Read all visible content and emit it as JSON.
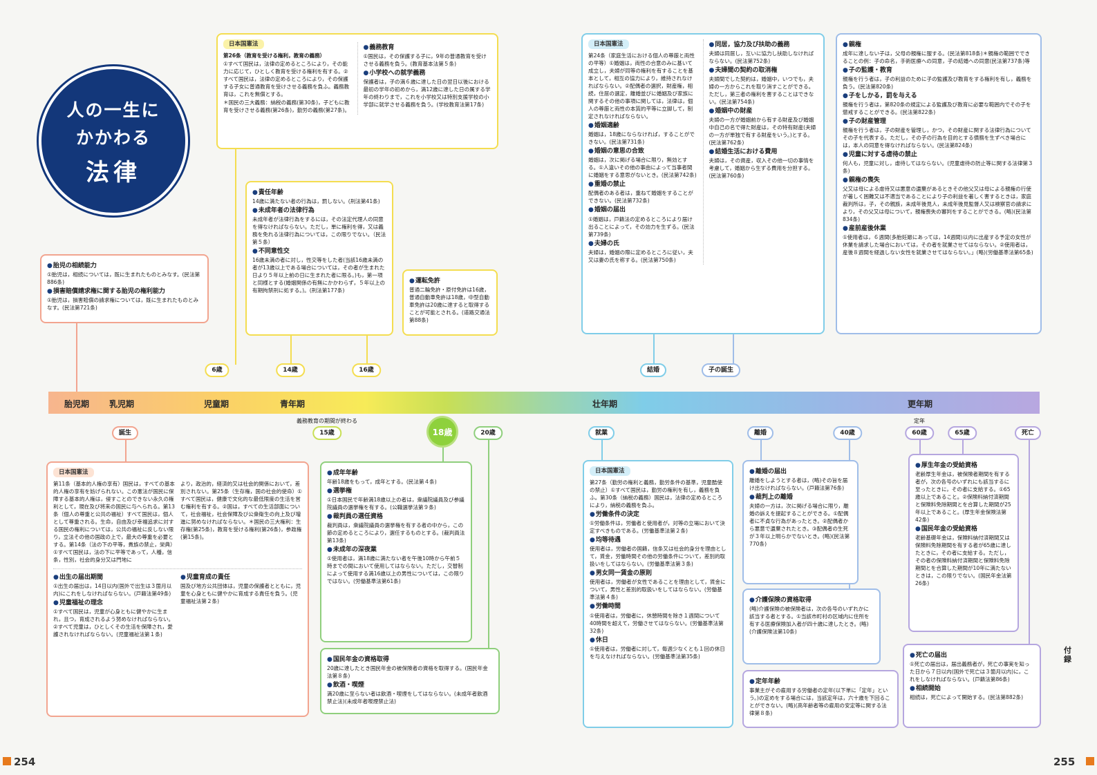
{
  "title": {
    "line1": "人の一生に",
    "line2": "かかわる",
    "line3": "法律"
  },
  "page_left": "254",
  "page_right": "255",
  "appendix": "付録",
  "stages": [
    "胎児期",
    "乳児期",
    "児童期",
    "青年期",
    "壮年期",
    "更年期"
  ],
  "ages_top": [
    "6歳",
    "14歳",
    "16歳",
    "結婚",
    "子の誕生"
  ],
  "ages_bottom": [
    "誕生",
    "15歳",
    "18歳",
    "20歳",
    "就業",
    "離婚",
    "40歳",
    "60歳",
    "65歳",
    "死亡"
  ],
  "notes": {
    "compulsory_end": "義務教育の期間が終わる",
    "retire": "定年"
  },
  "b_edu": {
    "tag": "日本国憲法",
    "c1": [
      "第26条（教育を受ける権利，教育の義務）",
      "①すべて国民は，法律の定めるところにより，その能力に応じて，ひとしく教育を受ける権利を有する。②すべて国民は，法律の定めるところにより，その保護する子女に普通教育を受けさせる義務を負ふ。義務教育は，これを無償とする。",
      "＊国民の三大義務：納税の義務(第30条)，子どもに教育を受けさせる義務(第26条)，勤労の義務(第27条)。"
    ],
    "h1": "義務教育",
    "p1": "①国民は，その保護する子に，9年の普通教育を受けさせる義務を負う。(教育基本法第５条)",
    "h2": "小学校への就学義務",
    "p2": "保護者は，子の満６歳に達した日の翌日以後における最初の学年の初めから，満12歳に達した日の属する学年の終わりまで，これを小学校又は特別支援学校の小学部に就学させる義務を負う。(学校教育法第17条)"
  },
  "b_resp": {
    "h1": "責任年齢",
    "p1": "14歳に満たない者の行為は，罰しない。(刑法第41条)",
    "h2": "未成年者の法律行為",
    "p2": "未成年者が法律行為をするには，その法定代理人の同意を得なければならない。ただし，単に権利を得，又は義務を免れる法律行為については，この限りでない。（民法第５条）",
    "h3": "不同意性交",
    "p3": "16歳未満の者に対し，性交等をした者(当該16歳未満の者が13歳以上である場合については，その者が生まれた日より５年以上前の日に生まれた者に限る。)も，第一項と同様とする(婚姻関係の有無にかかわらず，５年以上の有期拘禁刑に処する。)。(刑法第177条)"
  },
  "b_drive": {
    "h1": "運転免許",
    "p1": "普通二輪免許・原付免許は16歳，普通自動車免許は18歳，中型自動車免許は20歳に達すると取得することが可能とされる。(道路交通法第88条)"
  },
  "b_fetus": {
    "h1": "胎児の相続能力",
    "p1": "①胎児は，相続については，既に生まれたものとみなす。(民法第886条)",
    "h2": "損害賠償請求権に関する胎児の権利能力",
    "p2": "①胎児は，損害賠償の請求権については，既に生まれたものとみなす。(民法第721条)"
  },
  "b_marr": {
    "tag": "日本国憲法",
    "c1": "第24条（家庭生活における個人の尊厳と両性の平等）①婚姻は，両性の合意のみに基いて成立し，夫婦が同等の権利を有することを基本として，相互の協力により，維持されなければならない。②配偶者の選択，財産権，相続，住居の選定，離婚並びに婚姻及び家族に関するその他の事項に関しては，法律は，個人の尊厳と両性の本質的平等に立脚して，制定されなければならない。",
    "h1": "婚姻適齢",
    "p1": "婚姻は，18歳にならなければ，することができない。(民法第731条)",
    "h2": "婚姻の意思の合致",
    "p2": "婚姻は，次に掲げる場合に限り，無効とする。①人違いその他の事由によって当事者間に婚姻をする意思がないとき。(民法第742条)",
    "h3": "重婚の禁止",
    "p3": "配偶者のある者は，重ねて婚姻をすることができない。(民法第732条)",
    "h4": "婚姻の届出",
    "p4": "①婚姻は，戸籍法の定めるところにより届け出ることによって，その効力を生ずる。(民法第739条)",
    "h5": "夫婦の氏",
    "p5": "夫婦は，婚姻の際に定めるところに従い，夫又は妻の氏を称する。(民法第750条)",
    "h6": "同居，協力及び扶助の義務",
    "p6": "夫婦は同居し，互いに協力し扶助しなければならない。(民法第752条)",
    "h7": "夫婦間の契約の取消権",
    "p7": "夫婦間でした契約は，婚姻中，いつでも，夫婦の一方からこれを取り消すことができる。ただし，第三者の権利を害することはできない。(民法第754条)",
    "h8": "婚姻中の財産",
    "p8": "夫婦の一方が婚姻前から有する財産及び婚姻中自己の名で得た財産は，その特有財産(夫婦の一方が単独で有する財産をいう。)とする。(民法第762条)",
    "h9": "結婚生活における費用",
    "p9": "夫婦は，その資産，収入その他一切の事情を考慮して，婚姻から生ずる費用を分担する。(民法第760条)"
  },
  "b_parent": {
    "h1": "親権",
    "p1": "成年に達しない子は，父母の親権に服する。(民法第818条)＊親権の範囲でできることの例：子の命名，手術医療への同意，子の結婚への同意(民法第737条)等",
    "h2": "子の監護・教育",
    "p2": "親権を行う者は，子の利益のために子の監護及び教育をする権利を有し，義務を負う。(民法第820条)",
    "h3": "子をしかる，罰を与える",
    "p3": "親権を行う者は，第820条の規定による監護及び教育に必要な範囲内でその子を懲戒することができる。(民法第822条)",
    "h4": "子の財産管理",
    "p4": "親権を行う者は，子の財産を管理し，かつ，その財産に関する法律行為についてその子を代表する。ただし，その子の行為を目的とする債務を生ずべき場合には，本人の同意を得なければならない。(民法第824条)",
    "h5": "児童に対する虐待の禁止",
    "p5": "何人も，児童に対し，虐待してはならない。(児童虐待の防止等に関する法律第３条)",
    "h6": "親権の喪失",
    "p6": "父又は母による虐待又は悪意の遺棄があるときその他父又は母による親権の行使が著しく困難又は不適当であることにより子の利益を著しく害するときは，家庭裁判所は，子，その親族，未成年後見人，未成年後見監督人又は検察官の請求により，その父又は母について，親権喪失の審判をすることができる。(略)(民法第834条)",
    "h7": "産前産後休業",
    "p7": "①使用者は，６週間(多胎妊娠にあっては，14週間)以内に出産する予定の女性が休業を請求した場合においては，その者を就業させてはならない。②使用者は，産後８週間を経過しない女性を就業させてはならない。」(略)(労働基準法第65条)"
  },
  "b_birth": {
    "tag": "日本国憲法",
    "c1": "第11条（基本的人権の享有）国民は，すべての基本的人権の享有を妨げられない。この憲法が国民に保障する基本的人権は，侵すことのできない永久の権利として，現在及び将来の国民に与へられる。第13条（個人の尊重と公共の福祉）すべて国民は，個人として尊重される。生命，自由及び幸福追求に対する国民の権利については，公共の福祉に反しない限り，立法その他の国政の上で，最大の尊重を必要とする。第14条（法の下の平等，貴族の禁止，栄典）①すべて国民は，法の下に平等であって，人種，信条，性別，社会的身分又は門地に",
    "c2": "より，政治的，経済的又は社会的関係において，差別されない。第25条（生存権，国の社会的使命）①すべて国民は，健康で文化的な最低限度の生活を営む権利を有する。②国は，すべての生活部面について，社会福祉，社会保障及び公衆衛生の向上及び増進に努めなければならない。＊国民の三大権利：生存権(第25条)，教育を受ける権利(第26条)，参政権(第15条)。",
    "h1": "出生の届出期間",
    "p1": "①出生の届出は，14日以内(国外で出生は３箇月以内)にこれをしなければならない。(戸籍法第49条)",
    "h2": "児童福祉の理念",
    "p2": "①すべて国民は，児童が心身ともに健やかに生まれ，且つ，育成されるよう努めなければならない。②すべて児童は，ひとしくその生活を保障され，愛護されなければならない。(児童福祉法第１条)",
    "h3": "児童育成の責任",
    "p3": "国及び地方公共団体は，児童の保護者とともに，児童を心身ともに健やかに育成する責任を負う。(児童福祉法第２条)"
  },
  "b_adult": {
    "h1": "成年年齢",
    "p1": "年齢18歳をもって，成年とする。(民法第４条)",
    "h2": "選挙権",
    "p2": "①日本国民で年齢満18歳以上の者は，衆議院議員及び参議院議員の選挙権を有する。(公職選挙法第９条)",
    "h3": "裁判員の選任資格",
    "p3": "裁判員は，衆議院議員の選挙権を有する者の中から，この節の定めるところにより，選任するものとする。(裁判員法第13条)",
    "h4": "未成年の深夜業",
    "p4": "①使用者は，満18歳に満たない者を午後10時から午前５時までの間において使用してはならない。ただし，交替制によって使用する満16歳以上の男性については，この限りではない。(労働基準法第61条)"
  },
  "b_pension": {
    "h1": "国民年金の資格取得",
    "p1": "20歳に達したとき国民年金の被保険者の資格を取得する。(国民年金法第８条)",
    "h2": "飲酒・喫煙",
    "p2": "満20歳に至らない者は飲酒・喫煙をしてはならない。(未成年者飲酒禁止法)(未成年者喫煙禁止法)"
  },
  "b_work": {
    "tag": "日本国憲法",
    "c1": "第27条（勤労の権利と義務，勤労条件の基準，児童酷使の禁止）①すべて国民は，勤労の権利を有し，義務を負ふ。第30条（納税の義務）国民は，法律の定めるところにより，納税の義務を負ふ。",
    "h1": "労働条件の決定",
    "p1": "①労働条件は，労働者と使用者が，対等の立場において決定すべきものである。(労働基準法第２条)",
    "h2": "均等待遇",
    "p2": "使用者は，労働者の国籍，信条又は社会的身分を理由として，賃金，労働時間その他の労働条件について，差別的取扱いをしてはならない。(労働基準法第３条)",
    "h3": "男女同一賃金の原則",
    "p3": "使用者は，労働者が女性であることを理由として，賃金について，男性と差別的取扱いをしてはならない。(労働基準法第４条)",
    "h4": "労働時間",
    "p4": "①使用者は，労働者に，休憩時間を除き１週間について40時間を超えて，労働させてはならない。(労働基準法第32条)",
    "h5": "休日",
    "p5": "①使用者は，労働者に対して，毎週少なくとも１回の休日を与えなければならない。(労働基準法第35条)"
  },
  "b_div": {
    "h1": "離婚の届出",
    "p1": "離婚をしようとする者は，(略)その旨を届け出なければならない。(戸籍法第76条)",
    "h2": "裁判上の離婚",
    "p2": "夫婦の一方は，次に掲げる場合に限り，離婚の訴えを提起することができる。①配偶者に不貞な行為があったとき。②配偶者から悪意で遺棄されたとき。③配偶者の生死が３年以上明らかでないとき。(略)(民法第770条)"
  },
  "b_care": {
    "h1": "介護保険の資格取得",
    "p1": "(略)介護保険の被保険者は，次の各号のいずれかに該当する者とする。①当該市町村の区域内に住所を有する医療保険加入者が四十歳に達したとき。(略)(介護保険法第10条)"
  },
  "b_retire": {
    "h1": "定年年齢",
    "p1": "事業主がその雇用する労働者の定年(以下単に「定年」という。)の定めをする場合には，当該定年は，六十歳を下回ることができない。(略)(高年齢者等の雇用の安定等に関する法律第８条)"
  },
  "b_old": {
    "h1": "厚生年金の受給資格",
    "p1": "老齢厚生年金は，被保険者期間を有する者が，次の各号のいずれにも該当するに至ったときに，その者に支給する。①65歳以上であること。②保険料納付済期間と保険料免除期間とを合算した期間が25年以上であること。(厚生年金保険法第42条)",
    "h2": "国民年金の受給資格",
    "p2": "老齢基礎年金は，保険料納付済期間又は保険料免除期間を有する者が65歳に達したときに，その者に支給する。ただし，その者の保険料納付済期間と保険料免除期間とを合算した期間が10年に満たないときは，この限りでない。(国民年金法第26条)"
  },
  "b_death": {
    "h1": "死亡の届出",
    "p1": "①死亡の届出は，届出義務者が，死亡の事実を知った日から７日以内(国外で死亡は３箇月以内)に，これをしなければならない。(戸籍法第86条)",
    "h2": "相続開始",
    "p2": "相続は，死亡によって開始する。(民法第882条)"
  }
}
